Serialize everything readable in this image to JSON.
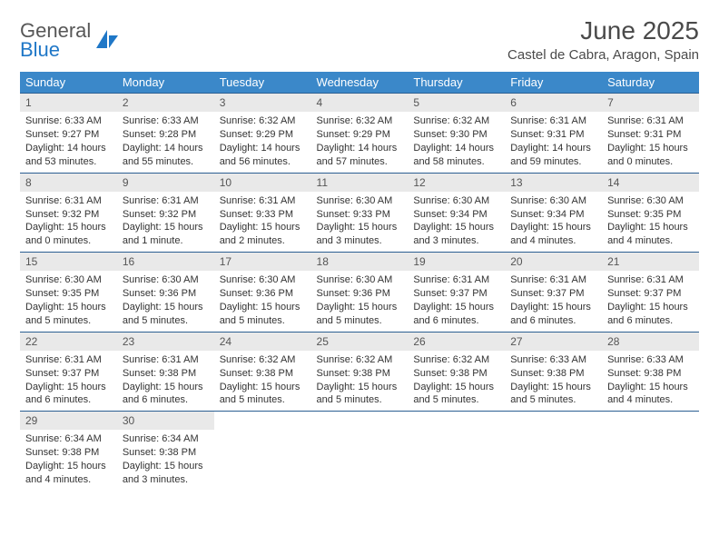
{
  "brand": {
    "name_top": "General",
    "name_bottom": "Blue"
  },
  "title": "June 2025",
  "location": "Castel de Cabra, Aragon, Spain",
  "colors": {
    "header_bg": "#3b88c9",
    "header_fg": "#ffffff",
    "row_border": "#2b5f92",
    "daynum_bg": "#e9e9e9",
    "text": "#333333",
    "brand_gray": "#575757",
    "brand_blue": "#1f77c7"
  },
  "weekdays": [
    "Sunday",
    "Monday",
    "Tuesday",
    "Wednesday",
    "Thursday",
    "Friday",
    "Saturday"
  ],
  "days": [
    {
      "n": 1,
      "sr": "6:33 AM",
      "ss": "9:27 PM",
      "dl": "14 hours and 53 minutes."
    },
    {
      "n": 2,
      "sr": "6:33 AM",
      "ss": "9:28 PM",
      "dl": "14 hours and 55 minutes."
    },
    {
      "n": 3,
      "sr": "6:32 AM",
      "ss": "9:29 PM",
      "dl": "14 hours and 56 minutes."
    },
    {
      "n": 4,
      "sr": "6:32 AM",
      "ss": "9:29 PM",
      "dl": "14 hours and 57 minutes."
    },
    {
      "n": 5,
      "sr": "6:32 AM",
      "ss": "9:30 PM",
      "dl": "14 hours and 58 minutes."
    },
    {
      "n": 6,
      "sr": "6:31 AM",
      "ss": "9:31 PM",
      "dl": "14 hours and 59 minutes."
    },
    {
      "n": 7,
      "sr": "6:31 AM",
      "ss": "9:31 PM",
      "dl": "15 hours and 0 minutes."
    },
    {
      "n": 8,
      "sr": "6:31 AM",
      "ss": "9:32 PM",
      "dl": "15 hours and 0 minutes."
    },
    {
      "n": 9,
      "sr": "6:31 AM",
      "ss": "9:32 PM",
      "dl": "15 hours and 1 minute."
    },
    {
      "n": 10,
      "sr": "6:31 AM",
      "ss": "9:33 PM",
      "dl": "15 hours and 2 minutes."
    },
    {
      "n": 11,
      "sr": "6:30 AM",
      "ss": "9:33 PM",
      "dl": "15 hours and 3 minutes."
    },
    {
      "n": 12,
      "sr": "6:30 AM",
      "ss": "9:34 PM",
      "dl": "15 hours and 3 minutes."
    },
    {
      "n": 13,
      "sr": "6:30 AM",
      "ss": "9:34 PM",
      "dl": "15 hours and 4 minutes."
    },
    {
      "n": 14,
      "sr": "6:30 AM",
      "ss": "9:35 PM",
      "dl": "15 hours and 4 minutes."
    },
    {
      "n": 15,
      "sr": "6:30 AM",
      "ss": "9:35 PM",
      "dl": "15 hours and 5 minutes."
    },
    {
      "n": 16,
      "sr": "6:30 AM",
      "ss": "9:36 PM",
      "dl": "15 hours and 5 minutes."
    },
    {
      "n": 17,
      "sr": "6:30 AM",
      "ss": "9:36 PM",
      "dl": "15 hours and 5 minutes."
    },
    {
      "n": 18,
      "sr": "6:30 AM",
      "ss": "9:36 PM",
      "dl": "15 hours and 5 minutes."
    },
    {
      "n": 19,
      "sr": "6:31 AM",
      "ss": "9:37 PM",
      "dl": "15 hours and 6 minutes."
    },
    {
      "n": 20,
      "sr": "6:31 AM",
      "ss": "9:37 PM",
      "dl": "15 hours and 6 minutes."
    },
    {
      "n": 21,
      "sr": "6:31 AM",
      "ss": "9:37 PM",
      "dl": "15 hours and 6 minutes."
    },
    {
      "n": 22,
      "sr": "6:31 AM",
      "ss": "9:37 PM",
      "dl": "15 hours and 6 minutes."
    },
    {
      "n": 23,
      "sr": "6:31 AM",
      "ss": "9:38 PM",
      "dl": "15 hours and 6 minutes."
    },
    {
      "n": 24,
      "sr": "6:32 AM",
      "ss": "9:38 PM",
      "dl": "15 hours and 5 minutes."
    },
    {
      "n": 25,
      "sr": "6:32 AM",
      "ss": "9:38 PM",
      "dl": "15 hours and 5 minutes."
    },
    {
      "n": 26,
      "sr": "6:32 AM",
      "ss": "9:38 PM",
      "dl": "15 hours and 5 minutes."
    },
    {
      "n": 27,
      "sr": "6:33 AM",
      "ss": "9:38 PM",
      "dl": "15 hours and 5 minutes."
    },
    {
      "n": 28,
      "sr": "6:33 AM",
      "ss": "9:38 PM",
      "dl": "15 hours and 4 minutes."
    },
    {
      "n": 29,
      "sr": "6:34 AM",
      "ss": "9:38 PM",
      "dl": "15 hours and 4 minutes."
    },
    {
      "n": 30,
      "sr": "6:34 AM",
      "ss": "9:38 PM",
      "dl": "15 hours and 3 minutes."
    }
  ],
  "labels": {
    "sunrise": "Sunrise:",
    "sunset": "Sunset:",
    "daylight": "Daylight:"
  },
  "layout": {
    "first_weekday_index": 0,
    "columns": 7
  }
}
